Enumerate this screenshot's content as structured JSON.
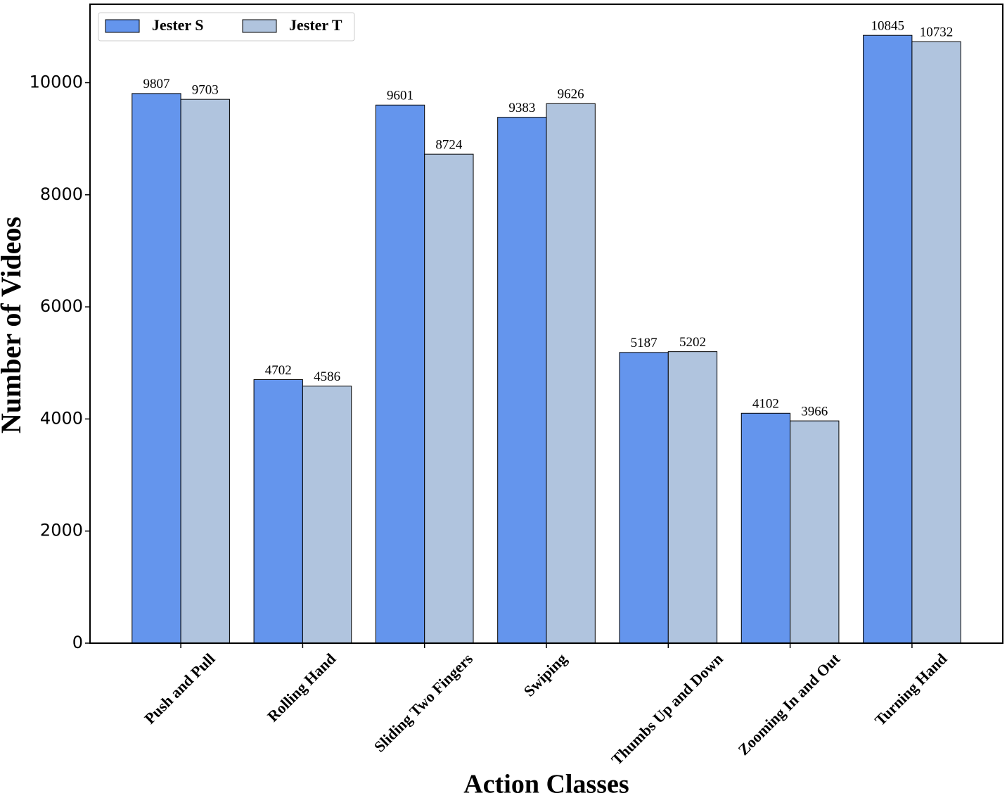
{
  "chart_data": {
    "type": "bar",
    "xlabel": "Action Classes",
    "ylabel": "Number of Videos",
    "categories": [
      "Push and Pull",
      "Rolling Hand",
      "Sliding Two Fingers",
      "Swiping",
      "Thumbs Up and Down",
      "Zooming In and Out",
      "Turning Hand"
    ],
    "series": [
      {
        "name": "Jester S",
        "color": "#6495ed",
        "values": [
          9807,
          4702,
          9601,
          9383,
          5187,
          4102,
          10845
        ]
      },
      {
        "name": "Jester T",
        "color": "#b0c4de",
        "values": [
          9703,
          4586,
          8724,
          9626,
          5202,
          3966,
          10732
        ]
      }
    ],
    "ylim": [
      0,
      11400
    ],
    "yticks": [
      0,
      2000,
      4000,
      6000,
      8000,
      10000
    ],
    "legend": "upper left",
    "grid": false
  }
}
